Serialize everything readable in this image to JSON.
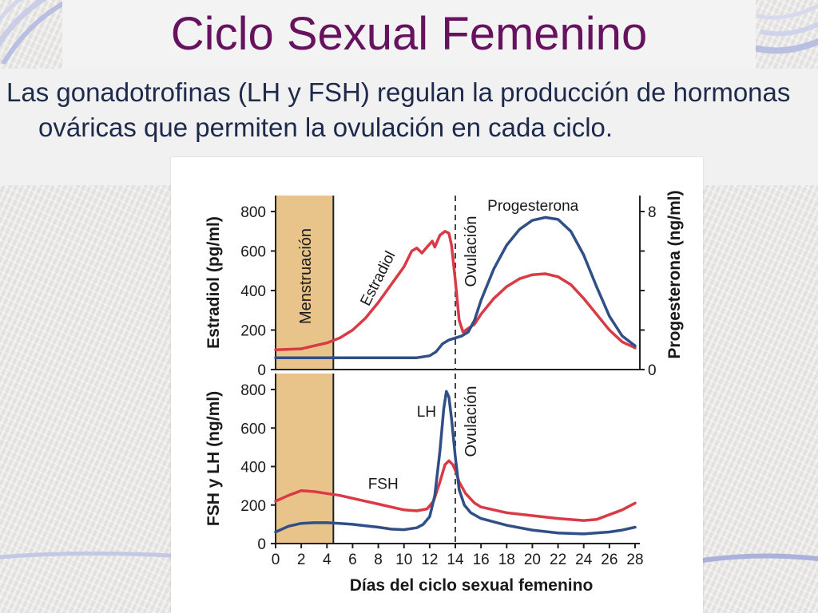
{
  "slide": {
    "title": "Ciclo Sexual Femenino",
    "bullet": "Las gonadotrofinas (LH y FSH) regulan la producción de hormonas ováricas que permiten la ovulación en cada ciclo."
  },
  "colors": {
    "title": "#66125f",
    "text": "#1e2a4c",
    "red_series": "#d93a45",
    "blue_series": "#2f4f86",
    "menstruation_band": "#e9c48a"
  },
  "chart_data": [
    {
      "type": "line",
      "panel": "top",
      "xlim": [
        0,
        28
      ],
      "ylim": [
        0,
        800
      ],
      "y_ticks": [
        "0",
        "200",
        "400",
        "600",
        "800"
      ],
      "ylabel": "Estradiol (pg/ml)",
      "y2lim": [
        0,
        8
      ],
      "y2_ticks": [
        "0",
        "8"
      ],
      "y2label": "Progesterona (ng/ml)",
      "band": {
        "label": "Menstruación",
        "x": [
          0,
          4.5
        ]
      },
      "vline": {
        "label": "Ovulación",
        "x": 14
      },
      "series": [
        {
          "name": "Estradiol",
          "axis": "y",
          "color": "#d93a45",
          "points": [
            [
              0,
              100
            ],
            [
              2,
              105
            ],
            [
              4,
              135
            ],
            [
              5,
              160
            ],
            [
              6,
              200
            ],
            [
              7,
              260
            ],
            [
              8,
              340
            ],
            [
              9,
              430
            ],
            [
              10,
              520
            ],
            [
              10.6,
              600
            ],
            [
              11,
              615
            ],
            [
              11.4,
              590
            ],
            [
              11.8,
              620
            ],
            [
              12.2,
              650
            ],
            [
              12.4,
              620
            ],
            [
              12.8,
              680
            ],
            [
              13.2,
              700
            ],
            [
              13.5,
              690
            ],
            [
              13.7,
              630
            ],
            [
              14,
              450
            ],
            [
              14.3,
              250
            ],
            [
              14.6,
              190
            ],
            [
              15.5,
              230
            ],
            [
              16,
              280
            ],
            [
              17,
              360
            ],
            [
              18,
              420
            ],
            [
              19,
              460
            ],
            [
              20,
              480
            ],
            [
              21,
              485
            ],
            [
              22,
              470
            ],
            [
              23,
              430
            ],
            [
              24,
              360
            ],
            [
              25,
              280
            ],
            [
              26,
              200
            ],
            [
              27,
              140
            ],
            [
              28,
              110
            ]
          ]
        },
        {
          "name": "Progesterona",
          "axis": "y2",
          "color": "#2f4f86",
          "points": [
            [
              0,
              0.6
            ],
            [
              4,
              0.6
            ],
            [
              8,
              0.6
            ],
            [
              11,
              0.6
            ],
            [
              12,
              0.7
            ],
            [
              12.5,
              0.9
            ],
            [
              13,
              1.3
            ],
            [
              13.5,
              1.5
            ],
            [
              14,
              1.6
            ],
            [
              14.5,
              1.7
            ],
            [
              15,
              1.9
            ],
            [
              15.5,
              2.5
            ],
            [
              16,
              3.5
            ],
            [
              17,
              5.1
            ],
            [
              18,
              6.3
            ],
            [
              19,
              7.1
            ],
            [
              20,
              7.55
            ],
            [
              21,
              7.7
            ],
            [
              22,
              7.6
            ],
            [
              23,
              7.0
            ],
            [
              24,
              5.8
            ],
            [
              25,
              4.2
            ],
            [
              26,
              2.7
            ],
            [
              27,
              1.7
            ],
            [
              28,
              1.2
            ]
          ]
        }
      ]
    },
    {
      "type": "line",
      "panel": "bottom",
      "xlim": [
        0,
        28
      ],
      "x_ticks": [
        "0",
        "2",
        "4",
        "6",
        "8",
        "10",
        "12",
        "14",
        "16",
        "18",
        "20",
        "22",
        "24",
        "26",
        "28"
      ],
      "xlabel": "Días del ciclo sexual femenino",
      "ylim": [
        0,
        800
      ],
      "y_ticks": [
        "0",
        "200",
        "400",
        "600",
        "800"
      ],
      "ylabel": "FSH y LH (ng/ml)",
      "band": {
        "x": [
          0,
          4.5
        ]
      },
      "vline": {
        "label": "Ovulación",
        "x": 14
      },
      "series": [
        {
          "name": "FSH",
          "color": "#d93a45",
          "points": [
            [
              0,
              220
            ],
            [
              1,
              250
            ],
            [
              2,
              275
            ],
            [
              3,
              270
            ],
            [
              4,
              260
            ],
            [
              5,
              250
            ],
            [
              6,
              235
            ],
            [
              7,
              220
            ],
            [
              8,
              205
            ],
            [
              9,
              190
            ],
            [
              10,
              175
            ],
            [
              11,
              170
            ],
            [
              11.8,
              180
            ],
            [
              12.3,
              220
            ],
            [
              12.8,
              320
            ],
            [
              13.2,
              410
            ],
            [
              13.5,
              430
            ],
            [
              13.8,
              410
            ],
            [
              14,
              380
            ],
            [
              14.3,
              320
            ],
            [
              14.8,
              260
            ],
            [
              15.5,
              210
            ],
            [
              16,
              190
            ],
            [
              18,
              160
            ],
            [
              20,
              145
            ],
            [
              22,
              130
            ],
            [
              24,
              120
            ],
            [
              25,
              125
            ],
            [
              26,
              150
            ],
            [
              27,
              175
            ],
            [
              28,
              210
            ]
          ]
        },
        {
          "name": "LH",
          "color": "#2f4f86",
          "points": [
            [
              0,
              60
            ],
            [
              1,
              90
            ],
            [
              2,
              105
            ],
            [
              3,
              108
            ],
            [
              4,
              108
            ],
            [
              5,
              105
            ],
            [
              6,
              100
            ],
            [
              7,
              92
            ],
            [
              8,
              85
            ],
            [
              9,
              75
            ],
            [
              10,
              72
            ],
            [
              11,
              82
            ],
            [
              11.5,
              100
            ],
            [
              12,
              140
            ],
            [
              12.4,
              250
            ],
            [
              12.8,
              480
            ],
            [
              13.1,
              700
            ],
            [
              13.3,
              790
            ],
            [
              13.5,
              760
            ],
            [
              13.7,
              650
            ],
            [
              14,
              450
            ],
            [
              14.3,
              280
            ],
            [
              14.7,
              200
            ],
            [
              15.2,
              160
            ],
            [
              16,
              130
            ],
            [
              18,
              95
            ],
            [
              20,
              70
            ],
            [
              22,
              55
            ],
            [
              24,
              50
            ],
            [
              26,
              60
            ],
            [
              27,
              70
            ],
            [
              28,
              85
            ]
          ]
        }
      ]
    }
  ]
}
